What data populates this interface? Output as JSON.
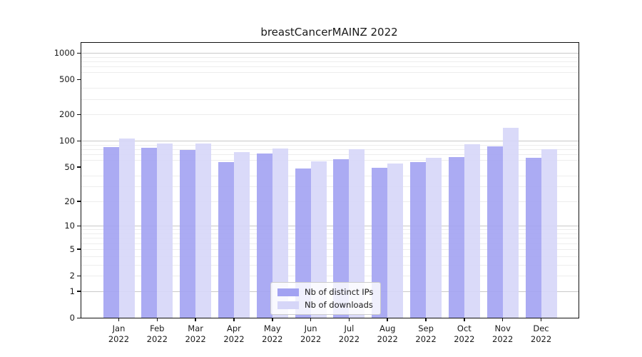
{
  "chart_data": {
    "type": "bar",
    "title": "breastCancerMAINZ 2022",
    "categories": [
      "Jan 2022",
      "Feb 2022",
      "Mar 2022",
      "Apr 2022",
      "May 2022",
      "Jun 2022",
      "Jul 2022",
      "Aug 2022",
      "Sep 2022",
      "Oct 2022",
      "Nov 2022",
      "Dec 2022"
    ],
    "series": [
      {
        "name": "Nb of distinct IPs",
        "color": "#a2a2f2",
        "values": [
          84,
          83,
          79,
          57,
          72,
          48,
          61,
          49,
          57,
          65,
          87,
          64
        ]
      },
      {
        "name": "Nb of downloads",
        "color": "#d6d6f8",
        "values": [
          107,
          93,
          94,
          74,
          81,
          58,
          80,
          55,
          64,
          91,
          140,
          80
        ]
      }
    ],
    "xlabel": "",
    "ylabel": "",
    "yscale": "log1p",
    "ylim": [
      0,
      1300
    ],
    "yticks": [
      0,
      1,
      2,
      5,
      10,
      20,
      50,
      100,
      200,
      500,
      1000
    ],
    "decade_gridlines": [
      1,
      10,
      100,
      1000
    ],
    "minor_gridlines": [
      2,
      3,
      4,
      5,
      6,
      7,
      8,
      9,
      20,
      30,
      40,
      60,
      70,
      80,
      90,
      200,
      300,
      400,
      600,
      700,
      800,
      900
    ],
    "grid": "on",
    "legend_position": "lower center"
  },
  "colors": {
    "grid_major": "#c9c9c9",
    "grid_minor": "#ededed",
    "axis": "#111111",
    "text": "#1a1a1a",
    "background": "#ffffff"
  }
}
